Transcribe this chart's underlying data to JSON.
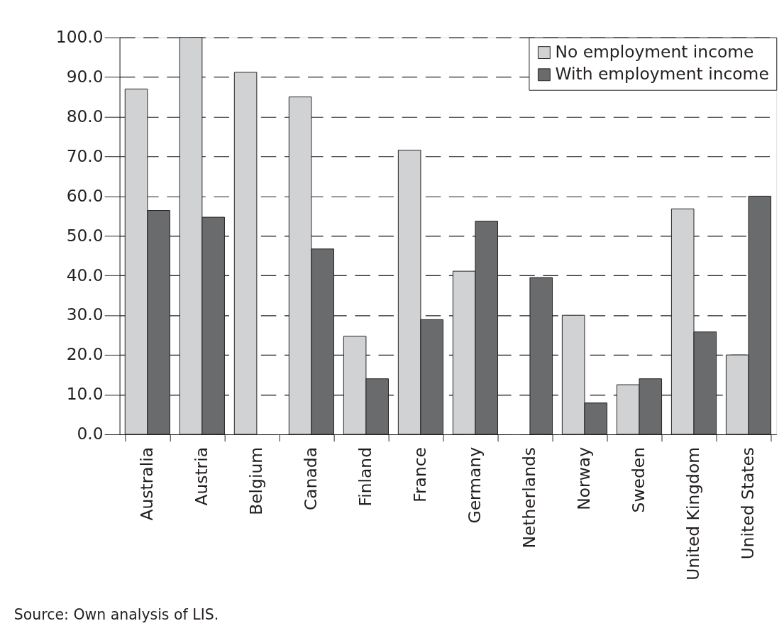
{
  "chart_data": {
    "type": "bar",
    "categories": [
      "Australia",
      "Austria",
      "Belgium",
      "Canada",
      "Finland",
      "France",
      "Germany",
      "Netherlands",
      "Norway",
      "Sweden",
      "United Kingdom",
      "United States"
    ],
    "series": [
      {
        "name": "No employment income",
        "color": "#d1d2d4",
        "values": [
          87.0,
          100.0,
          91.2,
          85.0,
          24.7,
          71.6,
          41.1,
          null,
          30.0,
          12.5,
          56.8,
          20.0
        ]
      },
      {
        "name": "With employment income",
        "color": "#6a6b6d",
        "values": [
          56.4,
          54.7,
          null,
          46.7,
          14.0,
          28.9,
          53.7,
          39.5,
          7.9,
          14.0,
          25.8,
          60.0
        ]
      }
    ],
    "ylim": [
      0,
      100
    ],
    "yticks": [
      {
        "value": 0,
        "label": "0.0"
      },
      {
        "value": 10,
        "label": "10.0"
      },
      {
        "value": 20,
        "label": "20.0"
      },
      {
        "value": 30,
        "label": "30.0"
      },
      {
        "value": 40,
        "label": "40.0"
      },
      {
        "value": 50,
        "label": "50.0"
      },
      {
        "value": 60,
        "label": "60.0"
      },
      {
        "value": 70,
        "label": "70.0"
      },
      {
        "value": 80,
        "label": "80.0"
      },
      {
        "value": 90,
        "label": "90.0"
      },
      {
        "value": 100,
        "label": "100.0"
      }
    ],
    "grid": "y",
    "legend": "top right",
    "annotations": [
      "Source: Own analysis of LIS."
    ]
  }
}
